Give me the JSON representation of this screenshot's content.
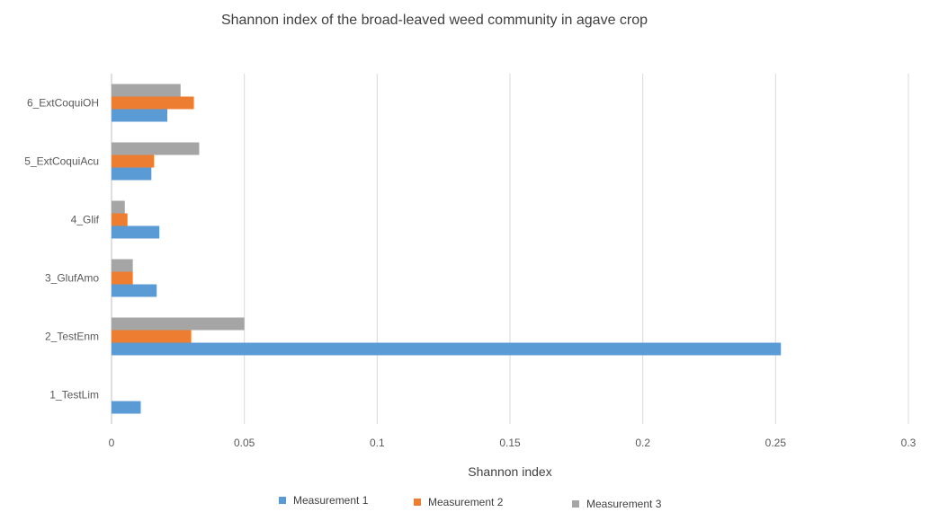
{
  "chart_data": {
    "type": "bar",
    "orientation": "horizontal",
    "title": "Shannon index of the broad-leaved weed community in agave crop",
    "xlabel": "Shannon index",
    "ylabel": "",
    "xlim": [
      0,
      0.3
    ],
    "xticks": [
      "0",
      "0.05",
      "0.1",
      "0.15",
      "0.2",
      "0.25",
      "0.3"
    ],
    "xtick_values": [
      0,
      0.05,
      0.1,
      0.15,
      0.2,
      0.25,
      0.3
    ],
    "grid": "vertical",
    "legend_position": "bottom",
    "categories": [
      "1_TestLim",
      "2_TestEnm",
      "3_GlufAmo",
      "4_Glif",
      "5_ExtCoquiAcu",
      "6_ExtCoquiOH"
    ],
    "series": [
      {
        "name": "Measurement 1",
        "color": "#5b9bd5",
        "values": [
          0.011,
          0.252,
          0.017,
          0.018,
          0.015,
          0.021
        ]
      },
      {
        "name": "Measurement 2",
        "color": "#ed7d31",
        "values": [
          0,
          0.03,
          0.008,
          0.006,
          0.016,
          0.031
        ]
      },
      {
        "name": "Measurement 3",
        "color": "#a5a5a5",
        "values": [
          0,
          0.05,
          0.008,
          0.005,
          0.033,
          0.026
        ]
      }
    ]
  }
}
